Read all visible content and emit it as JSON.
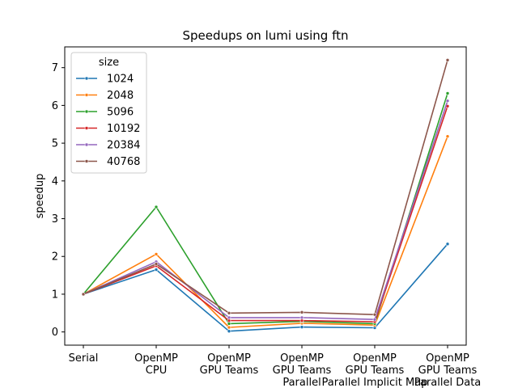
{
  "chart_data": {
    "type": "line",
    "title": "Speedups on lumi using ftn",
    "xlabel": "",
    "ylabel": "speedup",
    "ylim": [
      -0.35,
      7.55
    ],
    "yticks": [
      0,
      1,
      2,
      3,
      4,
      5,
      6,
      7
    ],
    "categories": [
      [
        "Serial"
      ],
      [
        "OpenMP",
        "CPU"
      ],
      [
        "OpenMP",
        "GPU Teams"
      ],
      [
        "OpenMP",
        "GPU Teams",
        "Parallel"
      ],
      [
        "OpenMP",
        "GPU Teams",
        "Parallel Implicit Map"
      ],
      [
        "OpenMP",
        "GPU Teams",
        "Parallel Data"
      ]
    ],
    "legend": {
      "title": "size",
      "placement": "upper-left"
    },
    "grid": false,
    "series": [
      {
        "name": "1024",
        "color": "#1f77b4",
        "values": [
          1.0,
          1.65,
          0.02,
          0.13,
          0.11,
          2.33
        ]
      },
      {
        "name": "2048",
        "color": "#ff7f0e",
        "values": [
          1.0,
          2.06,
          0.12,
          0.23,
          0.18,
          5.18
        ]
      },
      {
        "name": "5096",
        "color": "#2ca02c",
        "values": [
          1.0,
          3.31,
          0.22,
          0.28,
          0.22,
          6.32
        ]
      },
      {
        "name": "10192",
        "color": "#d62728",
        "values": [
          1.0,
          1.75,
          0.3,
          0.3,
          0.27,
          5.98
        ]
      },
      {
        "name": "20384",
        "color": "#9467bd",
        "values": [
          1.0,
          1.86,
          0.38,
          0.38,
          0.33,
          6.12
        ]
      },
      {
        "name": "40768",
        "color": "#8c564b",
        "values": [
          1.0,
          1.8,
          0.5,
          0.52,
          0.46,
          7.2
        ]
      }
    ]
  }
}
